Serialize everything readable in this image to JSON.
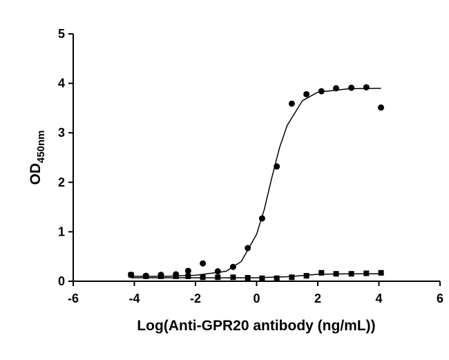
{
  "chart_data": {
    "type": "scatter",
    "xlabel": "Log(Anti-GPR20 antibody (ng/mL))",
    "ylabel": {
      "text": "OD",
      "subscript": "450nm"
    },
    "xlim": [
      -6,
      6
    ],
    "xticks": [
      -6,
      -4,
      -2,
      0,
      2,
      4,
      6
    ],
    "ylim": [
      0,
      5
    ],
    "yticks": [
      0,
      1,
      2,
      3,
      4,
      5
    ],
    "series": [
      {
        "color": "#000000",
        "marker": "circle",
        "x": [
          -4.11,
          -3.62,
          -3.13,
          -2.64,
          -2.24,
          -1.76,
          -1.27,
          -0.77,
          -0.29,
          0.18,
          0.66,
          1.15,
          1.63,
          2.12,
          2.6,
          3.1,
          3.59,
          4.07
        ],
        "values": [
          0.13,
          0.11,
          0.13,
          0.14,
          0.21,
          0.36,
          0.2,
          0.29,
          0.67,
          1.27,
          2.32,
          3.59,
          3.78,
          3.84,
          3.9,
          3.91,
          3.92,
          3.51
        ]
      },
      {
        "color": "#000000",
        "marker": "square",
        "x": [
          -4.11,
          -3.62,
          -3.13,
          -2.64,
          -2.24,
          -1.76,
          -1.27,
          -0.77,
          -0.29,
          0.18,
          0.66,
          1.15,
          1.63,
          2.12,
          2.6,
          3.1,
          3.59,
          4.07
        ],
        "values": [
          0.13,
          0.1,
          0.1,
          0.1,
          0.1,
          0.08,
          0.08,
          0.08,
          0.07,
          0.06,
          0.06,
          0.08,
          0.11,
          0.17,
          0.15,
          0.15,
          0.16,
          0.17
        ]
      },
      {
        "color": "#000000",
        "marker": "line",
        "x": [
          -4.11,
          -3,
          -2,
          -1,
          -0.5,
          0,
          0.25,
          0.5,
          0.75,
          1,
          1.5,
          2,
          3,
          4.07
        ],
        "values": [
          0.1,
          0.1,
          0.12,
          0.2,
          0.4,
          0.95,
          1.45,
          2.1,
          2.7,
          3.15,
          3.65,
          3.82,
          3.89,
          3.9
        ]
      },
      {
        "color": "#000000",
        "marker": "line",
        "x": [
          -4.11,
          -2,
          0,
          1,
          2,
          3,
          4.07
        ],
        "values": [
          0.07,
          0.07,
          0.07,
          0.09,
          0.14,
          0.15,
          0.15
        ]
      }
    ]
  }
}
